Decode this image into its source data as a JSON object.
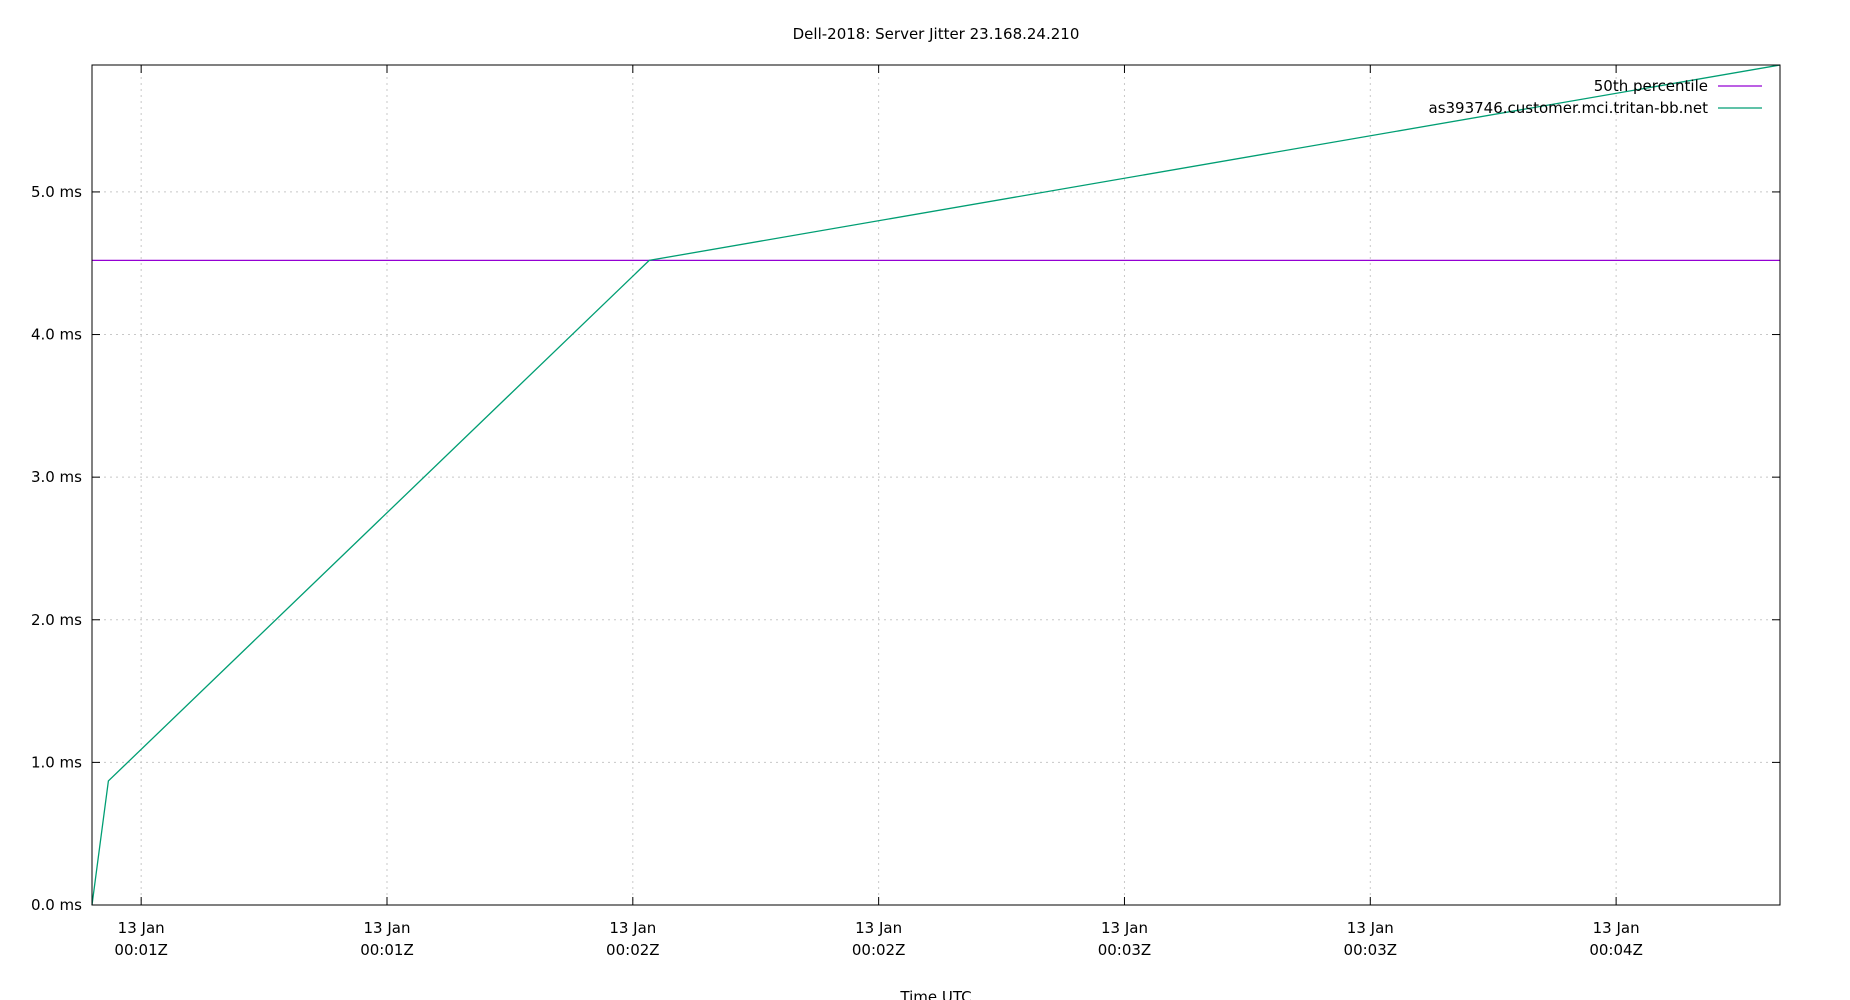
{
  "chart_data": {
    "type": "line",
    "title": "Dell-2018: Server Jitter 23.168.24.210",
    "xlabel": "Time UTC",
    "ylabel": "",
    "date": "13 Jan",
    "xlim": [
      "00:00:54",
      "00:04:20"
    ],
    "ylim": [
      0,
      5.89
    ],
    "x_ticks": [
      {
        "t": "00:01:00",
        "line1": "13 Jan",
        "line2": "00:01Z"
      },
      {
        "t": "00:01:30",
        "line1": "13 Jan",
        "line2": "00:01Z"
      },
      {
        "t": "00:02:00",
        "line1": "13 Jan",
        "line2": "00:02Z"
      },
      {
        "t": "00:02:30",
        "line1": "13 Jan",
        "line2": "00:02Z"
      },
      {
        "t": "00:03:00",
        "line1": "13 Jan",
        "line2": "00:03Z"
      },
      {
        "t": "00:03:30",
        "line1": "13 Jan",
        "line2": "00:03Z"
      },
      {
        "t": "00:04:00",
        "line1": "13 Jan",
        "line2": "00:04Z"
      }
    ],
    "y_ticks": [
      {
        "v": 0,
        "label": "0.0 ms"
      },
      {
        "v": 1,
        "label": "1.0 ms"
      },
      {
        "v": 2,
        "label": "2.0 ms"
      },
      {
        "v": 3,
        "label": "3.0 ms"
      },
      {
        "v": 4,
        "label": "4.0 ms"
      },
      {
        "v": 5,
        "label": "5.0 ms"
      }
    ],
    "grid": true,
    "legend_position": "top-right",
    "series": [
      {
        "name": "50th percentile",
        "color": "#9400d3",
        "x": [
          "00:00:54",
          "00:04:20"
        ],
        "y": [
          4.52,
          4.52
        ]
      },
      {
        "name": "as393746.customer.mci.tritan-bb.net",
        "color": "#009e73",
        "x": [
          "00:00:54",
          "00:00:56",
          "00:02:02",
          "00:04:20"
        ],
        "y": [
          0.0,
          0.87,
          4.52,
          5.89
        ]
      }
    ]
  }
}
